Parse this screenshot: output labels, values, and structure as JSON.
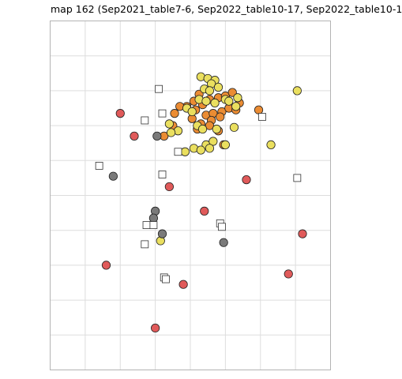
{
  "chart_data": {
    "type": "scatter",
    "title": "map 162 (Sep2021_table7-6, Sep2022_table10-17, Sep2022_table10-1",
    "xlabel": "",
    "ylabel": "",
    "xlim": [
      -4,
      4
    ],
    "ylim": [
      -10,
      0
    ],
    "grid": true,
    "x_gridlines": [
      -3,
      -2,
      -1,
      0,
      1,
      2,
      3
    ],
    "y_gridlines": [
      -1,
      -2,
      -3,
      -4,
      -5,
      -6,
      -7,
      -8,
      -9
    ],
    "colors": {
      "red": "#e05a5a",
      "orange": "#eb8c33",
      "yellow": "#eadf5f",
      "gray": "#7a7a7a",
      "square": "#ffffff",
      "panel_border": "#b3b3b3",
      "grid": "#dddddd"
    },
    "series": [
      {
        "marker": "circle",
        "color": "red",
        "x": [
          -2.0,
          -1.6,
          1.6,
          -0.6,
          0.4,
          3.2,
          -2.4,
          2.8,
          -0.2,
          -1.0
        ],
        "y": [
          -2.65,
          -3.3,
          -4.55,
          -4.75,
          -5.45,
          -6.1,
          -7.0,
          -7.25,
          -7.55,
          -8.8
        ]
      },
      {
        "marker": "circle",
        "color": "orange",
        "x": [
          0.25,
          0.1,
          -0.1,
          0.15,
          0.35,
          0.55,
          0.8,
          1.0,
          1.2,
          0.45,
          0.65,
          0.9,
          1.1,
          1.4,
          -0.3,
          -0.45,
          0.05,
          0.3,
          0.6,
          0.85,
          1.3,
          0.2,
          0.55,
          -0.5,
          -0.75,
          1.95,
          0.8,
          0.95
        ],
        "y": [
          -2.1,
          -2.3,
          -2.45,
          -2.55,
          -2.4,
          -2.25,
          -2.2,
          -2.15,
          -2.05,
          -2.7,
          -2.65,
          -2.6,
          -2.5,
          -2.35,
          -2.45,
          -2.65,
          -2.8,
          -2.95,
          -2.85,
          -2.75,
          -2.55,
          -3.1,
          -3.0,
          -3.0,
          -3.3,
          -2.55,
          -3.15,
          -3.55
        ]
      },
      {
        "marker": "circle",
        "color": "yellow",
        "x": [
          0.3,
          0.5,
          0.7,
          0.6,
          0.4,
          0.55,
          0.8,
          1.0,
          1.3,
          0.25,
          0.45,
          0.7,
          1.1,
          1.35,
          -0.1,
          0.05,
          -0.6,
          -0.35,
          -0.55,
          0.2,
          0.35,
          0.75,
          1.25,
          0.1,
          0.45,
          0.65,
          1.0,
          0.3,
          0.55,
          -0.15,
          2.3,
          3.05,
          -0.85
        ],
        "y": [
          -1.6,
          -1.65,
          -1.7,
          -1.8,
          -1.95,
          -2.0,
          -1.9,
          -2.25,
          -2.45,
          -2.25,
          -2.3,
          -2.35,
          -2.3,
          -2.2,
          -2.5,
          -2.6,
          -2.95,
          -3.15,
          -3.2,
          -3.0,
          -3.1,
          -3.1,
          -3.05,
          -3.65,
          -3.55,
          -3.45,
          -3.55,
          -3.7,
          -3.65,
          -3.75,
          -3.55,
          -2.0,
          -6.3
        ]
      },
      {
        "marker": "circle",
        "color": "gray",
        "x": [
          -0.95,
          -2.2,
          -1.0,
          -1.05,
          -0.8,
          0.95
        ],
        "y": [
          -3.3,
          -4.45,
          -5.45,
          -5.65,
          -6.1,
          -6.35
        ]
      },
      {
        "marker": "square",
        "color": "square",
        "x": [
          -0.9,
          -0.8,
          -1.3,
          2.05,
          -2.6,
          -0.35,
          -0.8,
          3.05,
          -1.25,
          -1.05,
          0.85,
          0.9,
          -1.3,
          -0.75,
          -0.7
        ],
        "y": [
          -1.95,
          -2.65,
          -2.85,
          -2.75,
          -4.15,
          -3.75,
          -4.4,
          -4.5,
          -5.85,
          -5.85,
          -5.8,
          -5.9,
          -6.4,
          -7.35,
          -7.4
        ]
      }
    ]
  }
}
